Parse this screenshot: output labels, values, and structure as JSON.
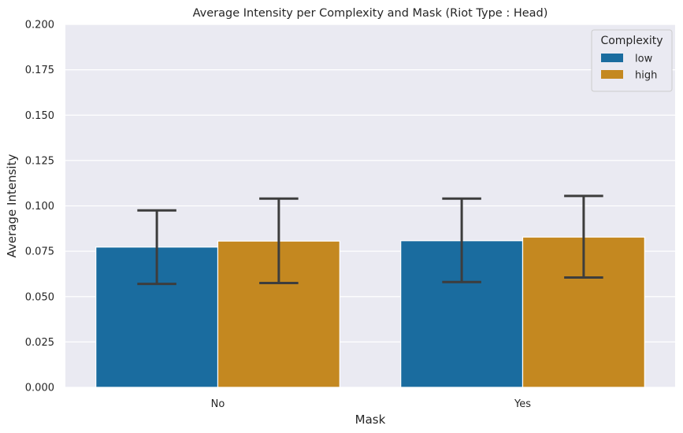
{
  "chart_data": {
    "type": "bar",
    "title": "Average Intensity per Complexity and Mask (Riot Type : Head)",
    "xlabel": "Mask",
    "ylabel": "Average Intensity",
    "categories": [
      "No",
      "Yes"
    ],
    "ylim": [
      0,
      0.2
    ],
    "yticks": [
      "0.000",
      "0.025",
      "0.050",
      "0.075",
      "0.100",
      "0.125",
      "0.150",
      "0.175",
      "0.200"
    ],
    "grid": true,
    "legend": {
      "title": "Complexity",
      "placement": "top-right"
    },
    "series": [
      {
        "name": "low",
        "color": "#1a6c9f",
        "values": [
          0.0773,
          0.0808
        ],
        "error_low": [
          0.057,
          0.058
        ],
        "error_high": [
          0.0975,
          0.104
        ]
      },
      {
        "name": "high",
        "color": "#c48820",
        "values": [
          0.0806,
          0.0828
        ],
        "error_low": [
          0.0575,
          0.0605
        ],
        "error_high": [
          0.104,
          0.1055
        ]
      }
    ]
  }
}
